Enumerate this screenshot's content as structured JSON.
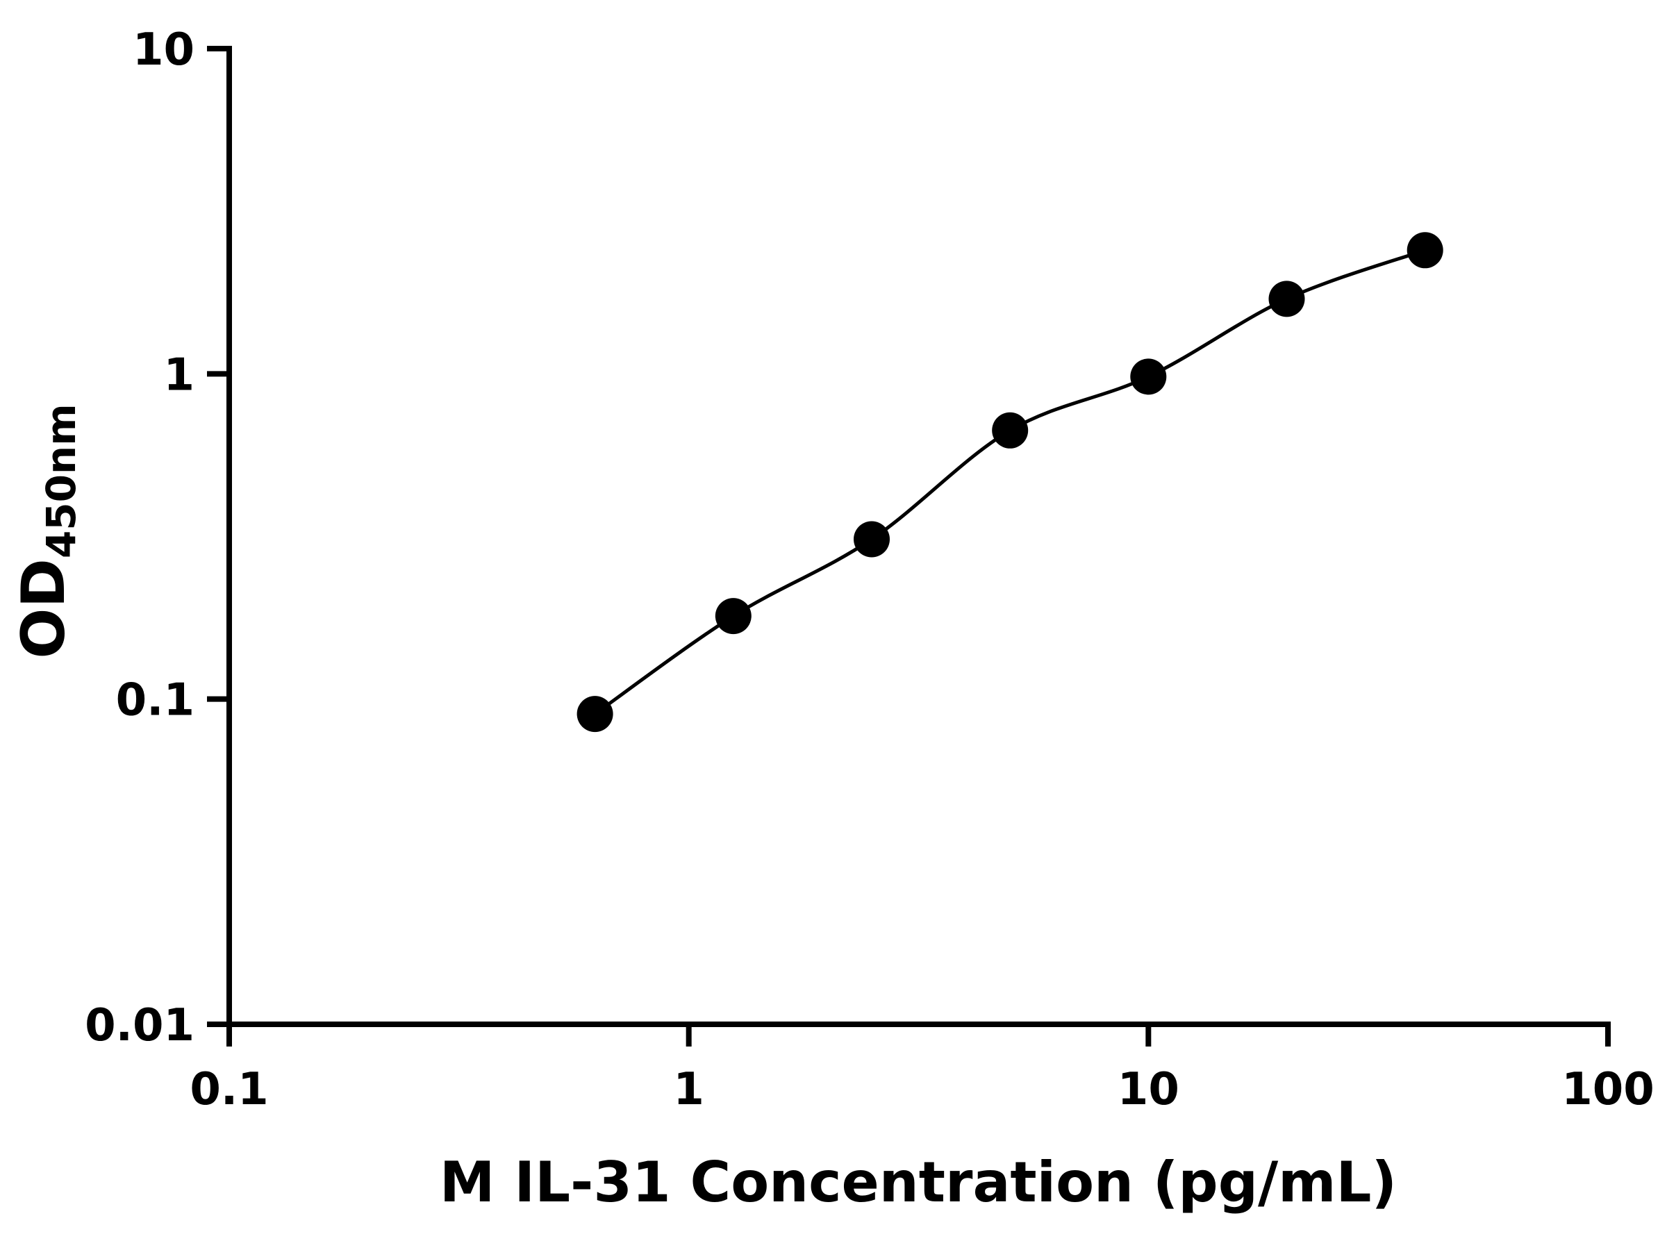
{
  "figure": {
    "background": "#ffffff"
  },
  "colors": {
    "axis": "#000000",
    "curve": "#000000",
    "marker": "#000000",
    "text": "#000000"
  },
  "chart_data": {
    "type": "line",
    "title": "",
    "xlabel": "M IL-31 Concentration (pg/mL)",
    "ylabel_main": "OD",
    "ylabel_sub": "450nm",
    "x_scale": "log10",
    "y_scale": "log10",
    "xlim": [
      0.1,
      100
    ],
    "ylim": [
      0.01,
      10
    ],
    "grid": false,
    "legend": false,
    "x_ticks": [
      {
        "value": 0.1,
        "label": "0.1"
      },
      {
        "value": 1,
        "label": "1"
      },
      {
        "value": 10,
        "label": "10"
      },
      {
        "value": 100,
        "label": "100"
      }
    ],
    "y_ticks": [
      {
        "value": 0.01,
        "label": "0.01"
      },
      {
        "value": 0.1,
        "label": "0.1"
      },
      {
        "value": 1,
        "label": "1"
      },
      {
        "value": 10,
        "label": "10"
      }
    ],
    "series": [
      {
        "marker": "filled-circle",
        "x": [
          0.625,
          1.25,
          2.5,
          5,
          10,
          20,
          40
        ],
        "y": [
          0.09,
          0.18,
          0.31,
          0.67,
          0.98,
          1.7,
          2.4
        ]
      }
    ]
  }
}
